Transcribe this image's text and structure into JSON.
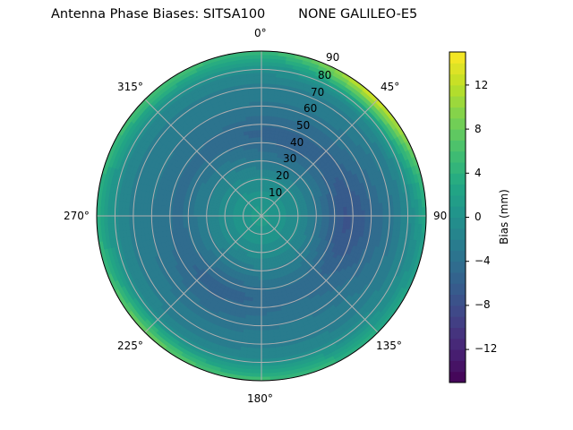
{
  "chart_data": {
    "type": "heatmap",
    "subtype": "polar",
    "title": "Antenna Phase Biases: SITSA100        NONE GALILEO-E5",
    "theta_labels": [
      "0°",
      "45°",
      "90",
      "135°",
      "180°",
      "225°",
      "270°",
      "315°"
    ],
    "theta_direction": "clockwise",
    "theta_zero": "north",
    "r_labels": [
      "10",
      "20",
      "30",
      "40",
      "50",
      "60",
      "70",
      "80",
      "90"
    ],
    "r_range": [
      0,
      90
    ],
    "grid": true,
    "colorbar": {
      "label": "Bias (mm)",
      "ticks": [
        -12,
        -8,
        -4,
        0,
        4,
        8,
        12
      ],
      "tick_labels": [
        "−12",
        "−8",
        "−4",
        "0",
        "4",
        "8",
        "12"
      ],
      "range": [
        -15,
        15
      ],
      "colormap": "viridis",
      "levels": 30
    },
    "description_of_field": {
      "center_zenith_0_to_20": 1.5,
      "ring_30_to_60": -4.5,
      "min_region": {
        "azimuth_deg": 95,
        "zenith_deg": 50,
        "value": -7
      },
      "edge_80_to_90": 3.5,
      "max_region": {
        "azimuth_deg": 45,
        "zenith_deg": 90,
        "value": 12
      },
      "secondary_high": {
        "azimuth_deg": 225,
        "zenith_deg": 90,
        "value": 8
      }
    }
  },
  "header": {
    "title": "Antenna Phase Biases: SITSA100        NONE GALILEO-E5"
  },
  "colors": {
    "grid": "#b0b0b0",
    "axis": "#000000",
    "colormap": [
      "#440154",
      "#482475",
      "#414487",
      "#355f8d",
      "#2a788e",
      "#21918c",
      "#22a884",
      "#44bf70",
      "#7ad151",
      "#bddf26",
      "#fde725"
    ]
  }
}
